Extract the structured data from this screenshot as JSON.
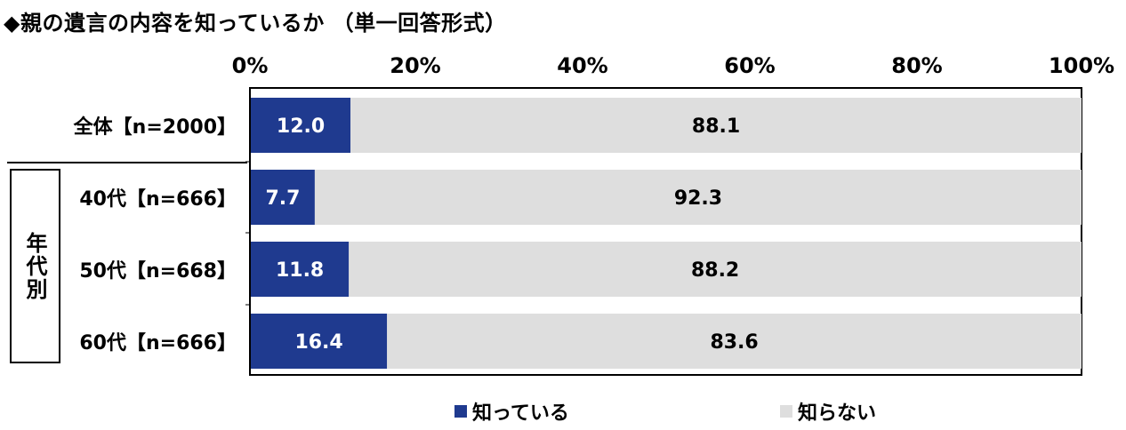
{
  "title": "◆親の遺言の内容を知っているか （単一回答形式）",
  "group_label": "年代別",
  "colors": {
    "know": "#1f3a8f",
    "dont_know": "#dedede",
    "axis": "#000000"
  },
  "chart_data": {
    "type": "bar",
    "orientation": "horizontal",
    "stacked": true,
    "percent": true,
    "xlim": [
      0,
      100
    ],
    "x_ticks": [
      "0%",
      "20%",
      "40%",
      "60%",
      "80%",
      "100%"
    ],
    "categories": [
      "全体【n=2000】",
      "40代【n=666】",
      "50代【n=668】",
      "60代【n=666】"
    ],
    "series": [
      {
        "name": "知っている",
        "values": [
          12.0,
          7.7,
          11.8,
          16.4
        ],
        "labels": [
          "12.0",
          "7.7",
          "11.8",
          "16.4"
        ]
      },
      {
        "name": "知らない",
        "values": [
          88.1,
          92.3,
          88.2,
          83.6
        ],
        "labels": [
          "88.1",
          "92.3",
          "88.2",
          "83.6"
        ]
      }
    ],
    "legend_position": "bottom"
  }
}
